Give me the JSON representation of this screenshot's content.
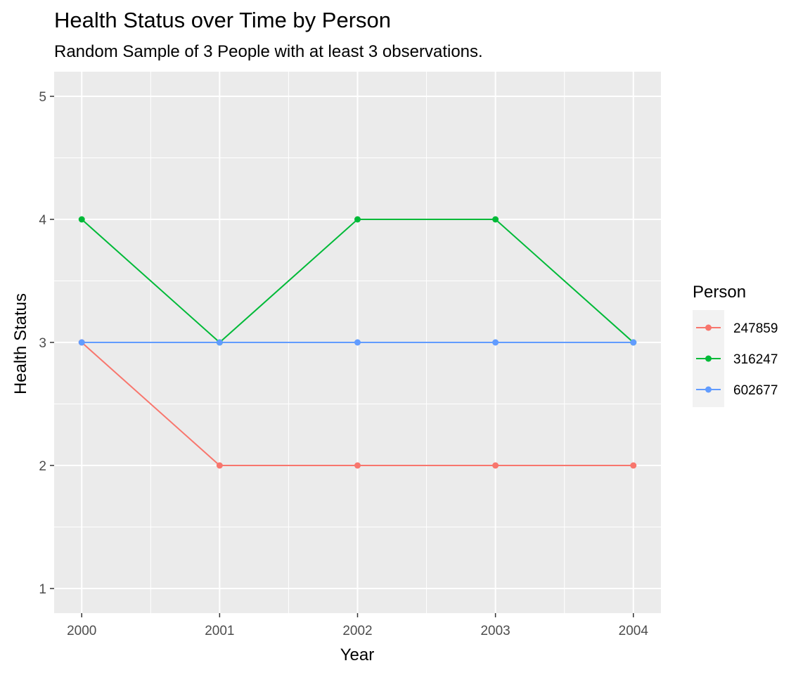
{
  "chart_data": {
    "type": "line",
    "title": "Health Status over Time by Person",
    "subtitle": "Random Sample of 3 People with at least 3 observations.",
    "xlabel": "Year",
    "ylabel": "Health Status",
    "x": [
      2000,
      2001,
      2002,
      2003,
      2004
    ],
    "xlim": [
      1999.8,
      2004.2
    ],
    "ylim": [
      0.8,
      5.2
    ],
    "y_ticks": [
      1,
      2,
      3,
      4,
      5
    ],
    "grid": true,
    "legend": {
      "title": "Person",
      "placement": "right"
    },
    "series": [
      {
        "name": "247859",
        "color": "#F8766D",
        "values": [
          3,
          2,
          2,
          2,
          2
        ]
      },
      {
        "name": "316247",
        "color": "#00BA38",
        "values": [
          4,
          3,
          4,
          4,
          3
        ]
      },
      {
        "name": "602677",
        "color": "#619CFF",
        "values": [
          3,
          3,
          3,
          3,
          3
        ]
      }
    ]
  }
}
